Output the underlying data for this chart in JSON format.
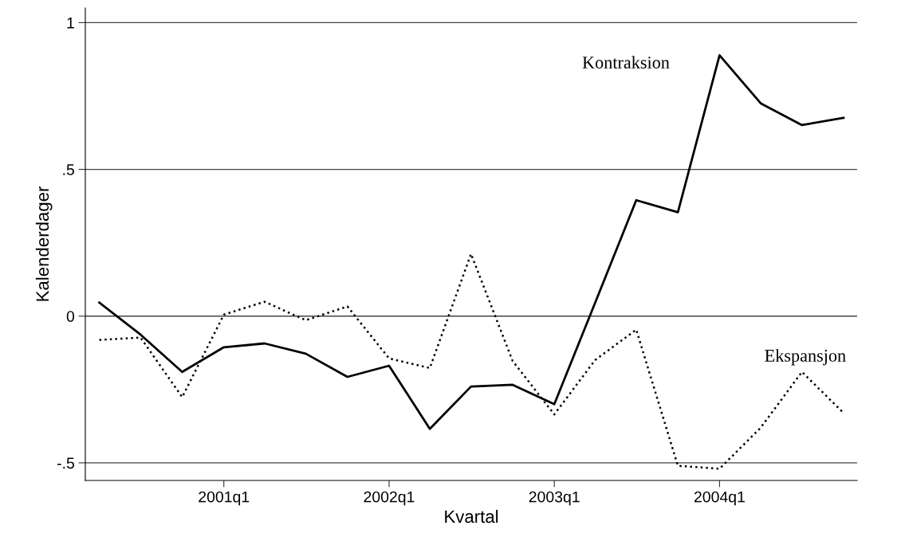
{
  "chart_data": {
    "type": "line",
    "xlabel": "Kvartal",
    "ylabel": "Kalenderdager",
    "x": [
      "2000-04",
      "2000-07",
      "2000-10",
      "2001-01",
      "2001-04",
      "2001-07",
      "2001-10",
      "2002-01",
      "2002-04",
      "2002-07",
      "2002-10",
      "2003-01",
      "2003-04",
      "2003-07",
      "2003-10",
      "2004-01",
      "2004-04",
      "2004-07",
      "2004-10"
    ],
    "series": [
      {
        "name": "Kontraksion",
        "color": "#000000",
        "line_style": "solid",
        "values": [
          0.046,
          -0.063,
          -0.19,
          -0.106,
          -0.093,
          -0.128,
          -0.207,
          -0.169,
          -0.384,
          -0.24,
          -0.234,
          -0.3,
          0.045,
          0.395,
          0.354,
          0.889,
          0.725,
          0.651,
          0.676
        ]
      },
      {
        "name": "Ekspansjon",
        "color": "#000000",
        "line_style": "dotted",
        "values": [
          -0.081,
          -0.073,
          -0.276,
          0.005,
          0.049,
          -0.014,
          0.033,
          -0.144,
          -0.177,
          0.212,
          -0.153,
          -0.335,
          -0.15,
          -0.046,
          -0.51,
          -0.52,
          -0.38,
          -0.19,
          -0.33
        ]
      }
    ],
    "xlim": [
      "2000-03-01",
      "2004-10-31"
    ],
    "xticks": [
      {
        "value": "2001-01",
        "label": "2001q1"
      },
      {
        "value": "2002-01",
        "label": "2002q1"
      },
      {
        "value": "2003-01",
        "label": "2003q1"
      },
      {
        "value": "2004-01",
        "label": "2004q1"
      }
    ],
    "ylim": [
      -0.56,
      1.05
    ],
    "yticks": [
      1,
      {
        "value": 0.5,
        "label": ".5"
      },
      0,
      {
        "value": -0.5,
        "label": "-.5"
      }
    ],
    "grid": "y",
    "legend": false,
    "marker": "none"
  }
}
